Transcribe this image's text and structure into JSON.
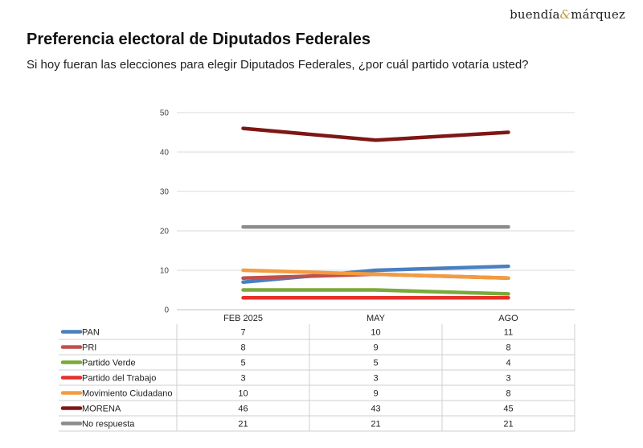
{
  "brand": {
    "name_left": "buendía",
    "name_amp": "&",
    "name_right": "márquez"
  },
  "header": {
    "title": "Preferencia electoral de Diputados Federales",
    "subtitle": "Si hoy fueran las elecciones para elegir Diputados Federales, ¿por cuál partido votaría usted?"
  },
  "chart_data": {
    "type": "line",
    "title": "Preferencia electoral de Diputados Federales",
    "xlabel": "",
    "ylabel": "",
    "ylim": [
      0,
      50
    ],
    "yticks": [
      0,
      10,
      20,
      30,
      40,
      50
    ],
    "grid": true,
    "legend": "bottom-table",
    "categories": [
      "FEB 2025",
      "MAY",
      "AGO"
    ],
    "series": [
      {
        "name": "PAN",
        "color": "#4a7fc1",
        "values": [
          7,
          10,
          11
        ]
      },
      {
        "name": "PRI",
        "color": "#c0504d",
        "values": [
          8,
          9,
          8
        ]
      },
      {
        "name": "Partido Verde",
        "color": "#7aaa3a",
        "values": [
          5,
          5,
          4
        ]
      },
      {
        "name": "Partido del Trabajo",
        "color": "#e8302a",
        "values": [
          3,
          3,
          3
        ]
      },
      {
        "name": "Movimiento Ciudadano",
        "color": "#f39b41",
        "values": [
          10,
          9,
          8
        ]
      },
      {
        "name": "MORENA",
        "color": "#7f1616",
        "values": [
          46,
          43,
          45
        ]
      },
      {
        "name": "No respuesta",
        "color": "#8c8c8c",
        "values": [
          21,
          21,
          21
        ]
      }
    ]
  }
}
